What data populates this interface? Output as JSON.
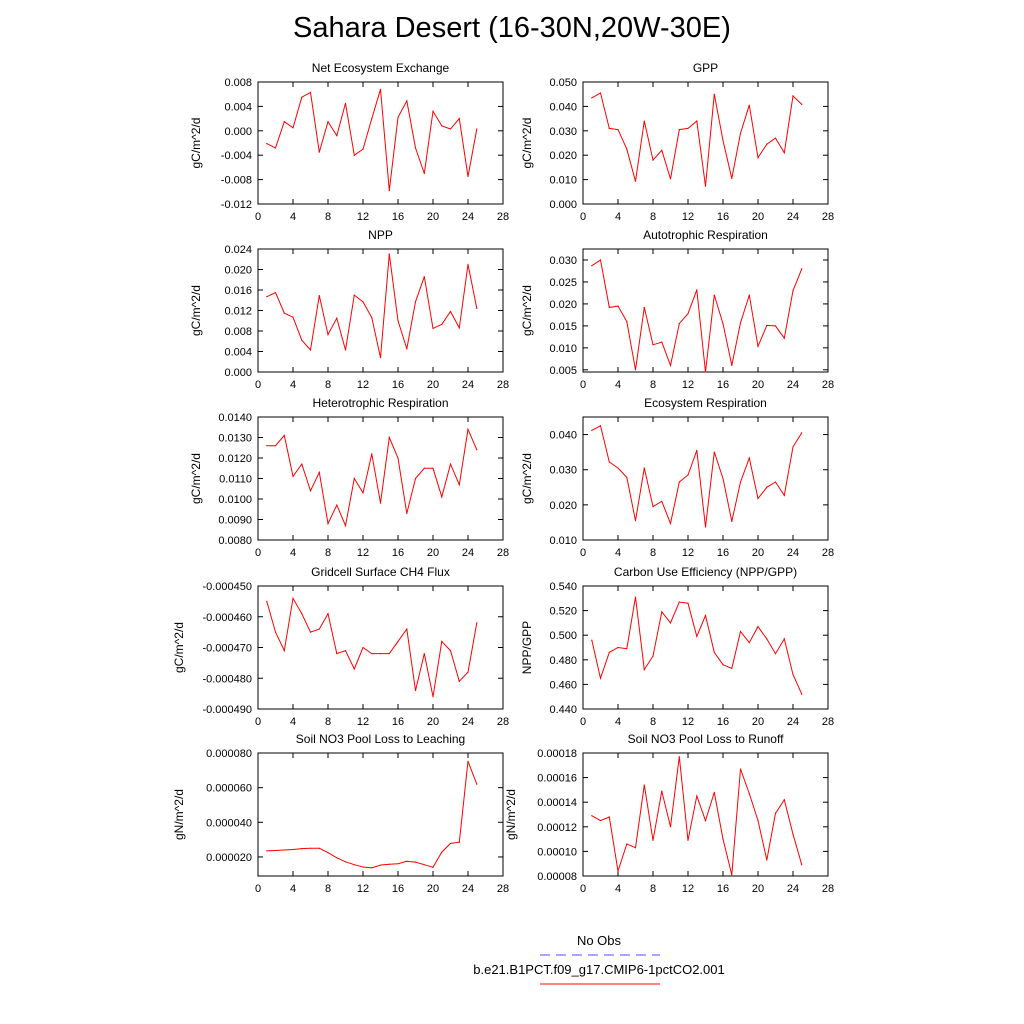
{
  "title": "Sahara Desert (16-30N,20W-30E)",
  "line_color": "#ff0000",
  "obs_line_color": "#4c4cff",
  "legend": {
    "obs_label": "No Obs",
    "case_label": "b.e21.B1PCT.f09_g17.CMIP6-1pctCO2.001"
  },
  "chart_data": [
    {
      "type": "line",
      "title": "Net Ecosystem Exchange",
      "ylabel": "gC/m^2/d",
      "xlim": [
        0,
        28
      ],
      "xticks": [
        "0",
        "4",
        "8",
        "12",
        "16",
        "20",
        "24",
        "28"
      ],
      "ylim": [
        -0.012,
        0.008
      ],
      "yticks": [
        "-0.012",
        "-0.008",
        "-0.004",
        "0.000",
        "0.004",
        "0.008"
      ],
      "x": [
        1,
        2,
        3,
        4,
        5,
        6,
        7,
        8,
        9,
        10,
        11,
        12,
        13,
        14,
        15,
        16,
        17,
        18,
        19,
        20,
        21,
        22,
        23,
        24,
        25
      ],
      "values": [
        -0.0021,
        -0.0028,
        0.0015,
        0.0005,
        0.0055,
        0.0063,
        -0.0035,
        0.0015,
        -0.0008,
        0.0045,
        -0.004,
        -0.003,
        0.002,
        0.0068,
        -0.0098,
        0.0022,
        0.0049,
        -0.0028,
        -0.007,
        0.0032,
        0.0008,
        0.0003,
        0.002,
        -0.0075,
        0.0003
      ]
    },
    {
      "type": "line",
      "title": "GPP",
      "ylabel": "gC/m^2/d",
      "xlim": [
        0,
        28
      ],
      "xticks": [
        "0",
        "4",
        "8",
        "12",
        "16",
        "20",
        "24",
        "28"
      ],
      "ylim": [
        0.0,
        0.05
      ],
      "yticks": [
        "0.000",
        "0.010",
        "0.020",
        "0.030",
        "0.040",
        "0.050"
      ],
      "x": [
        1,
        2,
        3,
        4,
        5,
        6,
        7,
        8,
        9,
        10,
        11,
        12,
        13,
        14,
        15,
        16,
        17,
        18,
        19,
        20,
        21,
        22,
        23,
        24,
        25
      ],
      "values": [
        0.0435,
        0.0455,
        0.031,
        0.0305,
        0.0225,
        0.0093,
        0.034,
        0.018,
        0.022,
        0.0103,
        0.0305,
        0.031,
        0.034,
        0.0073,
        0.045,
        0.026,
        0.0105,
        0.029,
        0.0405,
        0.019,
        0.0245,
        0.027,
        0.021,
        0.0443,
        0.0408
      ]
    },
    {
      "type": "line",
      "title": "NPP",
      "ylabel": "gC/m^2/d",
      "xlim": [
        0,
        28
      ],
      "xticks": [
        "0",
        "4",
        "8",
        "12",
        "16",
        "20",
        "24",
        "28"
      ],
      "ylim": [
        0.0,
        0.024
      ],
      "yticks": [
        "0.000",
        "0.004",
        "0.008",
        "0.012",
        "0.016",
        "0.020",
        "0.024"
      ],
      "x": [
        1,
        2,
        3,
        4,
        5,
        6,
        7,
        8,
        9,
        10,
        11,
        12,
        13,
        14,
        15,
        16,
        17,
        18,
        19,
        20,
        21,
        22,
        23,
        24,
        25
      ],
      "values": [
        0.0147,
        0.0155,
        0.0115,
        0.0107,
        0.0062,
        0.0043,
        0.0149,
        0.0073,
        0.0105,
        0.0043,
        0.015,
        0.0137,
        0.0106,
        0.0028,
        0.023,
        0.01,
        0.0045,
        0.0137,
        0.0186,
        0.0085,
        0.0093,
        0.0118,
        0.0086,
        0.021,
        0.0124
      ]
    },
    {
      "type": "line",
      "title": "Autotrophic Respiration",
      "ylabel": "gC/m^2/d",
      "xlim": [
        0,
        28
      ],
      "xticks": [
        "0",
        "4",
        "8",
        "12",
        "16",
        "20",
        "24",
        "28"
      ],
      "ylim": [
        0.0045,
        0.0325
      ],
      "yticks": [
        "0.005",
        "0.010",
        "0.015",
        "0.020",
        "0.025",
        "0.030"
      ],
      "x": [
        1,
        2,
        3,
        4,
        5,
        6,
        7,
        8,
        9,
        10,
        11,
        12,
        13,
        14,
        15,
        16,
        17,
        18,
        19,
        20,
        21,
        22,
        23,
        24,
        25
      ],
      "values": [
        0.0287,
        0.03,
        0.0192,
        0.0195,
        0.016,
        0.005,
        0.0192,
        0.0107,
        0.0113,
        0.006,
        0.0155,
        0.0178,
        0.0232,
        0.0045,
        0.022,
        0.0155,
        0.006,
        0.0157,
        0.022,
        0.0103,
        0.0151,
        0.015,
        0.0122,
        0.023,
        0.028
      ]
    },
    {
      "type": "line",
      "title": "Heterotrophic Respiration",
      "ylabel": "gC/m^2/d",
      "xlim": [
        0,
        28
      ],
      "xticks": [
        "0",
        "4",
        "8",
        "12",
        "16",
        "20",
        "24",
        "28"
      ],
      "ylim": [
        0.008,
        0.014
      ],
      "yticks": [
        "0.0080",
        "0.0090",
        "0.0100",
        "0.0110",
        "0.0120",
        "0.0130",
        "0.0140"
      ],
      "x": [
        1,
        2,
        3,
        4,
        5,
        6,
        7,
        8,
        9,
        10,
        11,
        12,
        13,
        14,
        15,
        16,
        17,
        18,
        19,
        20,
        21,
        22,
        23,
        24,
        25
      ],
      "values": [
        0.0126,
        0.0126,
        0.0131,
        0.0111,
        0.0117,
        0.0104,
        0.0113,
        0.0088,
        0.0097,
        0.0087,
        0.011,
        0.0103,
        0.0122,
        0.0098,
        0.013,
        0.012,
        0.0093,
        0.011,
        0.0115,
        0.0115,
        0.0101,
        0.0117,
        0.0107,
        0.0134,
        0.0124
      ]
    },
    {
      "type": "line",
      "title": "Ecosystem Respiration",
      "ylabel": "gC/m^2/d",
      "xlim": [
        0,
        28
      ],
      "xticks": [
        "0",
        "4",
        "8",
        "12",
        "16",
        "20",
        "24",
        "28"
      ],
      "ylim": [
        0.01,
        0.045
      ],
      "yticks": [
        "0.010",
        "0.020",
        "0.030",
        "0.040"
      ],
      "x": [
        1,
        2,
        3,
        4,
        5,
        6,
        7,
        8,
        9,
        10,
        11,
        12,
        13,
        14,
        15,
        16,
        17,
        18,
        19,
        20,
        21,
        22,
        23,
        24,
        25
      ],
      "values": [
        0.0412,
        0.0425,
        0.0322,
        0.0305,
        0.0278,
        0.0155,
        0.0305,
        0.0195,
        0.021,
        0.0147,
        0.0265,
        0.0285,
        0.0355,
        0.0137,
        0.035,
        0.0275,
        0.0153,
        0.0265,
        0.0333,
        0.0218,
        0.025,
        0.0265,
        0.0227,
        0.0365,
        0.0405
      ]
    },
    {
      "type": "line",
      "title": "Gridcell Surface CH4 Flux",
      "ylabel": "gC/m^2/d",
      "xlim": [
        0,
        28
      ],
      "xticks": [
        "0",
        "4",
        "8",
        "12",
        "16",
        "20",
        "24",
        "28"
      ],
      "ylim": [
        -0.00049,
        -0.00045
      ],
      "yticks": [
        "-0.000490",
        "-0.000480",
        "-0.000470",
        "-0.000460",
        "-0.000450"
      ],
      "x": [
        1,
        2,
        3,
        4,
        5,
        6,
        7,
        8,
        9,
        10,
        11,
        12,
        13,
        14,
        15,
        16,
        17,
        18,
        19,
        20,
        21,
        22,
        23,
        24,
        25
      ],
      "values": [
        -0.000455,
        -0.000465,
        -0.000471,
        -0.000454,
        -0.000459,
        -0.000465,
        -0.000464,
        -0.000459,
        -0.000472,
        -0.000471,
        -0.000477,
        -0.00047,
        -0.000472,
        -0.000472,
        -0.000472,
        -0.000468,
        -0.000464,
        -0.000484,
        -0.000472,
        -0.000486,
        -0.000468,
        -0.000471,
        -0.000481,
        -0.000478,
        -0.000462
      ]
    },
    {
      "type": "line",
      "title": "Carbon Use Efficiency (NPP/GPP)",
      "ylabel": "NPP/GPP",
      "xlim": [
        0,
        28
      ],
      "xticks": [
        "0",
        "4",
        "8",
        "12",
        "16",
        "20",
        "24",
        "28"
      ],
      "ylim": [
        0.44,
        0.54
      ],
      "yticks": [
        "0.440",
        "0.460",
        "0.480",
        "0.500",
        "0.520",
        "0.540"
      ],
      "x": [
        1,
        2,
        3,
        4,
        5,
        6,
        7,
        8,
        9,
        10,
        11,
        12,
        13,
        14,
        15,
        16,
        17,
        18,
        19,
        20,
        21,
        22,
        23,
        24,
        25
      ],
      "values": [
        0.496,
        0.465,
        0.486,
        0.49,
        0.489,
        0.531,
        0.472,
        0.483,
        0.519,
        0.51,
        0.527,
        0.526,
        0.499,
        0.516,
        0.486,
        0.476,
        0.473,
        0.503,
        0.494,
        0.507,
        0.497,
        0.485,
        0.497,
        0.468,
        0.452
      ]
    },
    {
      "type": "line",
      "title": "Soil NO3 Pool Loss to Leaching",
      "ylabel": "gN/m^2/d",
      "xlim": [
        0,
        28
      ],
      "xticks": [
        "0",
        "4",
        "8",
        "12",
        "16",
        "20",
        "24",
        "28"
      ],
      "ylim": [
        9e-06,
        8e-05
      ],
      "yticks": [
        "0.000020",
        "0.000040",
        "0.000060",
        "0.000080"
      ],
      "x": [
        1,
        2,
        3,
        4,
        5,
        6,
        7,
        8,
        9,
        10,
        11,
        12,
        13,
        14,
        15,
        16,
        17,
        18,
        19,
        20,
        21,
        22,
        23,
        24,
        25
      ],
      "values": [
        2.35e-05,
        2.37e-05,
        2.4e-05,
        2.43e-05,
        2.48e-05,
        2.5e-05,
        2.5e-05,
        2.25e-05,
        1.95e-05,
        1.72e-05,
        1.55e-05,
        1.42e-05,
        1.37e-05,
        1.53e-05,
        1.58e-05,
        1.61e-05,
        1.75e-05,
        1.7e-05,
        1.55e-05,
        1.4e-05,
        2.28e-05,
        2.78e-05,
        2.85e-05,
        7.52e-05,
        6.2e-05
      ]
    },
    {
      "type": "line",
      "title": "Soil NO3 Pool Loss to Runoff",
      "ylabel": "gN/m^2/d",
      "xlim": [
        0,
        28
      ],
      "xticks": [
        "0",
        "4",
        "8",
        "12",
        "16",
        "20",
        "24",
        "28"
      ],
      "ylim": [
        8e-05,
        0.00018
      ],
      "yticks": [
        "0.00008",
        "0.00010",
        "0.00012",
        "0.00014",
        "0.00016",
        "0.00018"
      ],
      "x": [
        1,
        2,
        3,
        4,
        5,
        6,
        7,
        8,
        9,
        10,
        11,
        12,
        13,
        14,
        15,
        16,
        17,
        18,
        19,
        20,
        21,
        22,
        23,
        24,
        25
      ],
      "values": [
        0.000129,
        0.000125,
        0.000128,
        8.4e-05,
        0.000106,
        0.000103,
        0.000154,
        0.000109,
        0.000149,
        0.00012,
        0.000177,
        0.000109,
        0.000145,
        0.000125,
        0.000148,
        0.00011,
        8.1e-05,
        0.000167,
        0.000147,
        0.000125,
        9.3e-05,
        0.000131,
        0.000142,
        0.000114,
        8.9e-05
      ]
    }
  ]
}
